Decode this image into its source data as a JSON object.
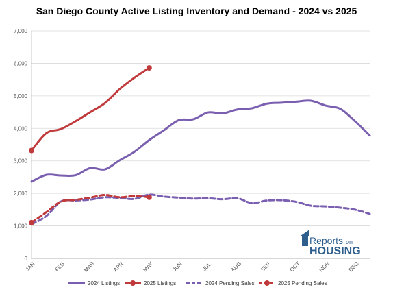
{
  "chart_data": {
    "type": "line",
    "title": "San Diego County Active Listing Inventory and Demand - 2024 vs 2025",
    "xlabel": "",
    "ylabel": "",
    "ylim": [
      0,
      7000
    ],
    "yticks": [
      0,
      1000,
      2000,
      3000,
      4000,
      5000,
      6000,
      7000
    ],
    "ytick_labels": [
      "0",
      "1,000",
      "2,000",
      "3,000",
      "4,000",
      "5,000",
      "6,000",
      "7,000"
    ],
    "months": [
      "JAN",
      "FEB",
      "MAR",
      "APR",
      "MAY",
      "JUN",
      "JUL",
      "AUG",
      "SEP",
      "OCT",
      "NOV",
      "DEC"
    ],
    "grid": true,
    "legend_position": "bottom",
    "series": [
      {
        "name": "2024 Listings",
        "color": "#7a5fb0",
        "dash": false,
        "markers": false,
        "x": [
          0,
          0.5,
          1,
          1.5,
          2,
          2.5,
          3,
          3.5,
          4,
          4.5,
          5,
          5.5,
          6,
          6.5,
          7,
          7.5,
          8,
          8.5,
          9,
          9.5,
          10,
          10.5,
          11,
          11.5
        ],
        "y": [
          2360,
          2570,
          2550,
          2560,
          2780,
          2740,
          3020,
          3280,
          3640,
          3940,
          4250,
          4280,
          4490,
          4460,
          4580,
          4620,
          4760,
          4790,
          4820,
          4850,
          4700,
          4600,
          4220,
          3780
        ]
      },
      {
        "name": "2025 Listings",
        "color": "#c0393b",
        "dash": false,
        "markers": true,
        "x": [
          0,
          0.5,
          1,
          1.5,
          2,
          2.5,
          3,
          3.5,
          4
        ],
        "y": [
          3320,
          3850,
          3980,
          4220,
          4500,
          4780,
          5210,
          5560,
          5860
        ]
      },
      {
        "name": "2024 Pending Sales",
        "color": "#7a5fb0",
        "dash": true,
        "markers": false,
        "x": [
          0,
          0.5,
          1,
          1.5,
          2,
          2.5,
          3,
          3.5,
          4,
          4.5,
          5,
          5.5,
          6,
          6.5,
          7,
          7.5,
          8,
          8.5,
          9,
          9.5,
          10,
          10.5,
          11,
          11.5
        ],
        "y": [
          1050,
          1300,
          1750,
          1780,
          1810,
          1880,
          1860,
          1830,
          1960,
          1900,
          1870,
          1840,
          1850,
          1820,
          1850,
          1700,
          1780,
          1790,
          1740,
          1620,
          1600,
          1560,
          1500,
          1370
        ]
      },
      {
        "name": "2025 Pending Sales",
        "color": "#c0393b",
        "dash": true,
        "markers": true,
        "x": [
          0,
          0.5,
          1,
          1.5,
          2,
          2.5,
          3,
          3.5,
          4
        ],
        "y": [
          1100,
          1420,
          1750,
          1800,
          1870,
          1950,
          1880,
          1920,
          1880
        ]
      }
    ]
  },
  "logo": {
    "line1": "Reports",
    "line1_small": "on",
    "line2": "HOUSING"
  }
}
